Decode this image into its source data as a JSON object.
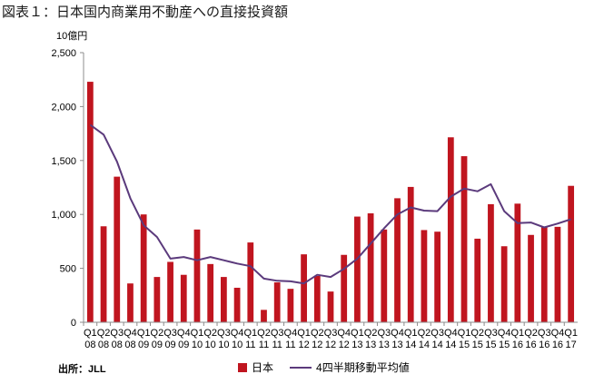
{
  "title": "図表１：日本国内商業用不動産への直接投資額",
  "source": "出所：JLL",
  "colors": {
    "bar": "#c0151f",
    "line": "#5b3a7c",
    "axis": "#8c8c8c"
  },
  "chart_data": {
    "type": "bar",
    "unit_label": "10億円",
    "ylim": [
      0,
      2500
    ],
    "yticks": [
      "0",
      "500",
      "1,000",
      "1,500",
      "2,000",
      "2,500"
    ],
    "ytick_values": [
      0,
      500,
      1000,
      1500,
      2000,
      2500
    ],
    "categories": [
      [
        "Q1",
        "08"
      ],
      [
        "Q2",
        "08"
      ],
      [
        "Q3",
        "08"
      ],
      [
        "Q4",
        "08"
      ],
      [
        "Q1",
        "09"
      ],
      [
        "Q2",
        "09"
      ],
      [
        "Q3",
        "09"
      ],
      [
        "Q4",
        "09"
      ],
      [
        "Q1",
        "10"
      ],
      [
        "Q2",
        "10"
      ],
      [
        "Q3",
        "10"
      ],
      [
        "Q4",
        "10"
      ],
      [
        "Q1",
        "11"
      ],
      [
        "Q2",
        "11"
      ],
      [
        "Q3",
        "11"
      ],
      [
        "Q4",
        "11"
      ],
      [
        "Q1",
        "12"
      ],
      [
        "Q2",
        "12"
      ],
      [
        "Q3",
        "12"
      ],
      [
        "Q4",
        "12"
      ],
      [
        "Q1",
        "13"
      ],
      [
        "Q2",
        "13"
      ],
      [
        "Q3",
        "13"
      ],
      [
        "Q4",
        "13"
      ],
      [
        "Q1",
        "14"
      ],
      [
        "Q2",
        "14"
      ],
      [
        "Q3",
        "14"
      ],
      [
        "Q4",
        "14"
      ],
      [
        "Q1",
        "15"
      ],
      [
        "Q2",
        "15"
      ],
      [
        "Q3",
        "15"
      ],
      [
        "Q4",
        "15"
      ],
      [
        "Q1",
        "16"
      ],
      [
        "Q2",
        "16"
      ],
      [
        "Q3",
        "16"
      ],
      [
        "Q4",
        "16"
      ],
      [
        "Q1",
        "17"
      ]
    ],
    "series": [
      {
        "name": "日本",
        "kind": "bar",
        "values": [
          2230,
          890,
          1350,
          360,
          1000,
          420,
          560,
          440,
          860,
          540,
          420,
          320,
          740,
          115,
          370,
          310,
          630,
          430,
          285,
          625,
          980,
          1010,
          860,
          1150,
          1255,
          855,
          840,
          1715,
          1540,
          775,
          1095,
          705,
          1100,
          810,
          880,
          885,
          1265
        ]
      },
      {
        "name": "4四半期移動平均値",
        "kind": "line",
        "values": [
          1830,
          1740,
          1490,
          1150,
          900,
          790,
          590,
          605,
          575,
          605,
          575,
          545,
          520,
          405,
          385,
          380,
          360,
          440,
          420,
          495,
          590,
          730,
          870,
          1000,
          1065,
          1035,
          1030,
          1165,
          1240,
          1215,
          1280,
          1030,
          920,
          925,
          880,
          915,
          955
        ]
      }
    ],
    "legend_position": "bottom"
  }
}
